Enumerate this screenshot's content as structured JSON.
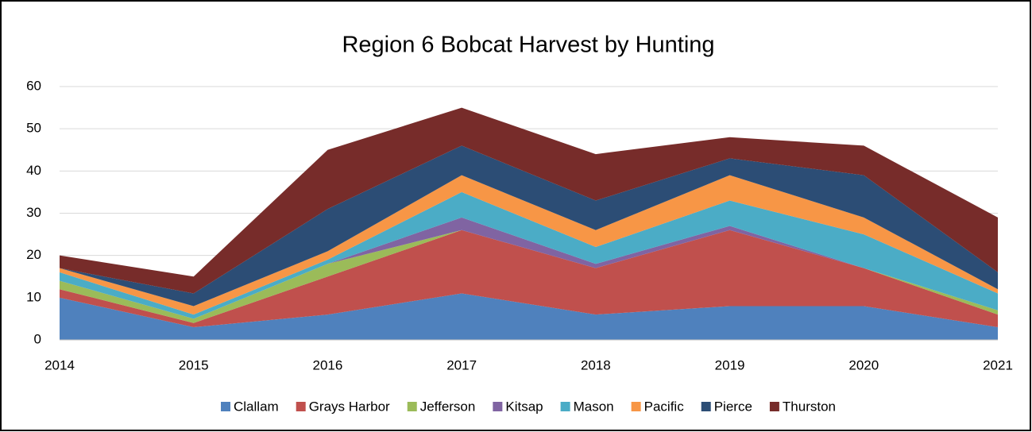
{
  "chart_data": {
    "type": "stacked-area",
    "title": "Region 6 Bobcat Harvest by Hunting",
    "categories": [
      "2014",
      "2015",
      "2016",
      "2017",
      "2018",
      "2019",
      "2020",
      "2021"
    ],
    "ylim": [
      0,
      60
    ],
    "yticks": [
      0,
      10,
      20,
      30,
      40,
      50,
      60
    ],
    "grid": true,
    "legend": "bottom",
    "series": [
      {
        "name": "Clallam",
        "color": "#4f81bd",
        "values": [
          10,
          3,
          6,
          11,
          6,
          8,
          8,
          3
        ]
      },
      {
        "name": "Grays Harbor",
        "color": "#c0504d",
        "values": [
          2,
          1,
          9,
          15,
          11,
          18,
          9,
          3
        ]
      },
      {
        "name": "Jefferson",
        "color": "#9bbb59",
        "values": [
          2,
          1,
          3,
          0,
          0,
          0,
          0,
          1
        ]
      },
      {
        "name": "Kitsap",
        "color": "#8064a2",
        "values": [
          0,
          0,
          0,
          3,
          1,
          1,
          0,
          0
        ]
      },
      {
        "name": "Mason",
        "color": "#4bacc6",
        "values": [
          2,
          1,
          1,
          6,
          4,
          6,
          8,
          4
        ]
      },
      {
        "name": "Pacific",
        "color": "#f79646",
        "values": [
          1,
          2,
          2,
          4,
          4,
          6,
          4,
          1
        ]
      },
      {
        "name": "Pierce",
        "color": "#2c4d75",
        "values": [
          0,
          3,
          10,
          7,
          7,
          4,
          10,
          4
        ]
      },
      {
        "name": "Thurston",
        "color": "#772c2a",
        "values": [
          3,
          4,
          14,
          9,
          11,
          5,
          7,
          13
        ]
      }
    ]
  }
}
